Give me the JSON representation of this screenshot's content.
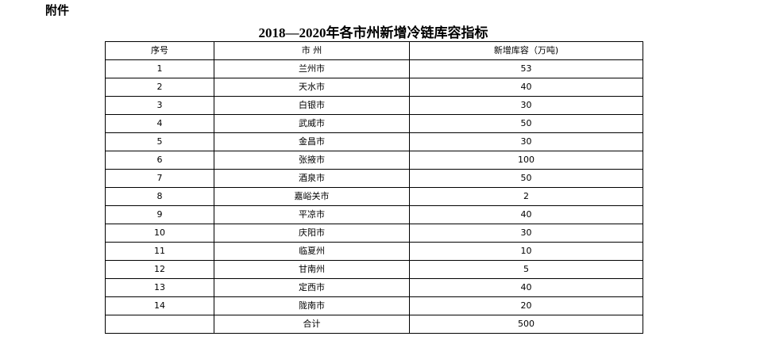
{
  "header": {
    "label": "附件",
    "title": "2018—2020年各市州新增冷链库容指标"
  },
  "table": {
    "columns": [
      "序号",
      "市 州",
      "新增库容（万吨)"
    ],
    "rows": [
      [
        1,
        "兰州市",
        53
      ],
      [
        2,
        "天水市",
        40
      ],
      [
        3,
        "白银市",
        30
      ],
      [
        4,
        "武威市",
        50
      ],
      [
        5,
        "金昌市",
        30
      ],
      [
        6,
        "张掖市",
        100
      ],
      [
        7,
        "酒泉市",
        50
      ],
      [
        8,
        "嘉峪关市",
        2
      ],
      [
        9,
        "平凉市",
        40
      ],
      [
        10,
        "庆阳市",
        30
      ],
      [
        11,
        "临夏州",
        10
      ],
      [
        12,
        "甘南州",
        5
      ],
      [
        13,
        "定西市",
        40
      ],
      [
        14,
        "陇南市",
        20
      ]
    ],
    "total": {
      "label": "合计",
      "value": 500
    }
  }
}
